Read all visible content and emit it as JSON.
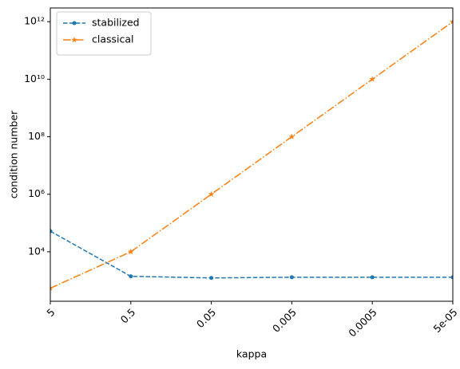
{
  "chart_data": {
    "type": "line",
    "xlabel": "kappa",
    "ylabel": "condition number",
    "x": [
      5,
      0.5,
      0.05,
      0.005,
      0.0005,
      5e-05
    ],
    "xscale": "log",
    "yscale": "log",
    "xlim": [
      5,
      5e-05
    ],
    "ylim": [
      190,
      3000000000000
    ],
    "xticks": [
      5,
      0.5,
      0.05,
      0.005,
      0.0005,
      {
        "value": 5e-05,
        "label": "5e-05"
      }
    ],
    "yticks": [
      {
        "value": 10000,
        "label": "10⁴"
      },
      {
        "value": 1000000,
        "label": "10⁶"
      },
      {
        "value": 100000000,
        "label": "10⁸"
      },
      {
        "value": 10000000000,
        "label": "10¹⁰"
      },
      {
        "value": 1000000000000,
        "label": "10¹²"
      }
    ],
    "grid": false,
    "legend": "upper left",
    "series": [
      {
        "name": "stabilized",
        "color": "#1f77b4",
        "linestyle": "dashed",
        "marker": "circle",
        "values": [
          52000,
          1400,
          1230,
          1300,
          1300,
          1300
        ]
      },
      {
        "name": "classical",
        "color": "#ff7f0e",
        "linestyle": "dashdot",
        "marker": "star",
        "values": [
          540,
          10000,
          1000000,
          100000000,
          10000000000,
          1000000000000
        ]
      }
    ]
  }
}
